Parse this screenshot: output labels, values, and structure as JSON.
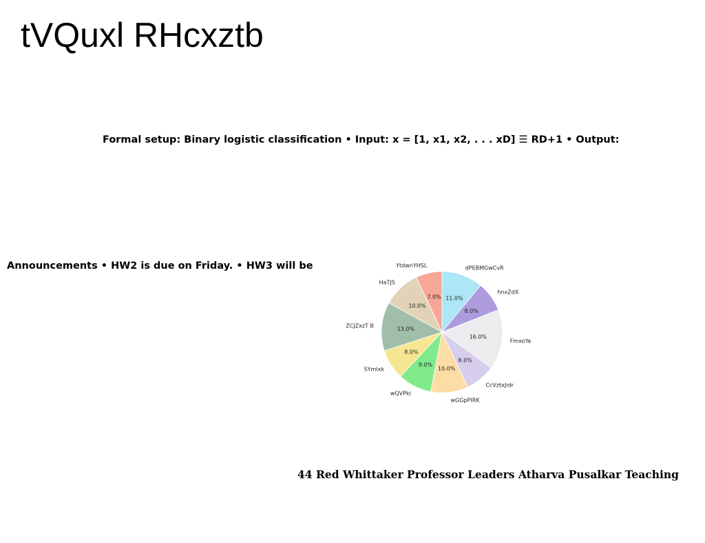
{
  "page": {
    "title": "tVQuxl RHcxztb",
    "formal_setup": "Formal setup: Binary logistic classification • Input: x = [1, x1, x2, . . . xD] ☰ RD+1 • Output:",
    "announcements": "Announcements • HW2 is due on Friday. • HW3 will be",
    "teaching": "44 Red Whittaker Professor Leaders Atharva Pusalkar Teaching"
  },
  "chart_data": {
    "type": "pie",
    "start_angle_deg": 90,
    "direction": "clockwise",
    "slices": [
      {
        "label": "dPEBMGwCvR",
        "value": 11.0,
        "pct_label": "11.0%",
        "color": "#ade6f5"
      },
      {
        "label": "hnxZdX",
        "value": 8.0,
        "pct_label": "8.0%",
        "color": "#ae9bdd"
      },
      {
        "label": "FmxoYa",
        "value": 16.0,
        "pct_label": "16.0%",
        "color": "#ececef"
      },
      {
        "label": "CcVztxJidr",
        "value": 8.0,
        "pct_label": "8.0%",
        "color": "#d7cdec"
      },
      {
        "label": "wGGpPIRK",
        "value": 10.0,
        "pct_label": "10.0%",
        "color": "#fcdda6"
      },
      {
        "label": "wQVPki",
        "value": 9.0,
        "pct_label": "9.0%",
        "color": "#81eb8c"
      },
      {
        "label": "SYmlxk",
        "value": 8.0,
        "pct_label": "8.0%",
        "color": "#f6e692"
      },
      {
        "label": "ZCJZxzT B",
        "value": 13.0,
        "pct_label": "13.0%",
        "color": "#a1bfa8"
      },
      {
        "label": "HaTJS",
        "value": 10.0,
        "pct_label": "10.0%",
        "color": "#e2d3b8"
      },
      {
        "label": "YtdwnYHSL",
        "value": 7.0,
        "pct_label": "7.0%",
        "color": "#f6a797"
      }
    ]
  }
}
